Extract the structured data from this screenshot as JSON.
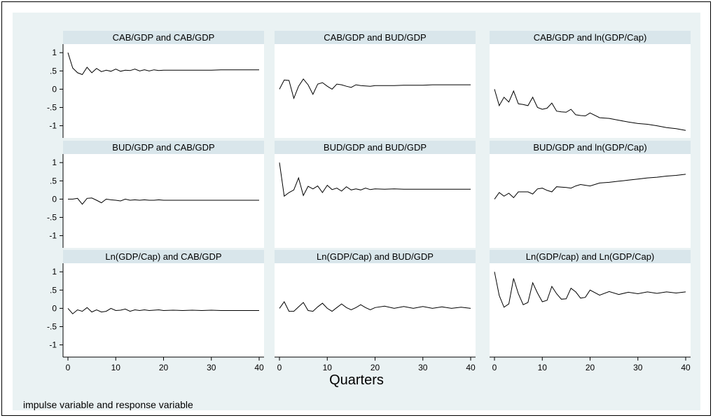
{
  "figure": {
    "xaxis_title": "Quarters",
    "note": "impulse variable and response variable"
  },
  "axes": {
    "x_ticks": [
      0,
      10,
      20,
      30,
      40
    ],
    "y_ticks": [
      1,
      0.5,
      0,
      -0.5,
      -1
    ],
    "y_tick_labels": [
      "1",
      ".5",
      "0",
      "-.5",
      "-1"
    ],
    "xlim": [
      0,
      40
    ],
    "ylim": [
      -1.2,
      1.1
    ]
  },
  "chart_data": [
    {
      "type": "line",
      "title": "CAB/GDP and CAB/GDP",
      "x": [
        0,
        1,
        2,
        3,
        4,
        5,
        6,
        7,
        8,
        9,
        10,
        11,
        12,
        13,
        14,
        15,
        16,
        17,
        18,
        19,
        20,
        22,
        24,
        26,
        28,
        30,
        32,
        34,
        36,
        38,
        40
      ],
      "y": [
        1.0,
        0.58,
        0.45,
        0.4,
        0.6,
        0.45,
        0.57,
        0.48,
        0.52,
        0.49,
        0.55,
        0.49,
        0.52,
        0.51,
        0.55,
        0.5,
        0.53,
        0.5,
        0.53,
        0.51,
        0.52,
        0.52,
        0.52,
        0.52,
        0.52,
        0.52,
        0.53,
        0.53,
        0.53,
        0.53,
        0.53
      ]
    },
    {
      "type": "line",
      "title": "CAB/GDP and BUD/GDP",
      "x": [
        0,
        1,
        2,
        3,
        4,
        5,
        6,
        7,
        8,
        9,
        10,
        11,
        12,
        13,
        14,
        15,
        16,
        17,
        18,
        19,
        20,
        22,
        24,
        26,
        28,
        30,
        32,
        34,
        36,
        38,
        40
      ],
      "y": [
        0.0,
        0.25,
        0.24,
        -0.25,
        0.08,
        0.28,
        0.12,
        -0.14,
        0.14,
        0.18,
        0.08,
        0.0,
        0.14,
        0.12,
        0.08,
        0.05,
        0.12,
        0.1,
        0.09,
        0.08,
        0.1,
        0.1,
        0.1,
        0.11,
        0.11,
        0.11,
        0.12,
        0.12,
        0.12,
        0.12,
        0.12
      ]
    },
    {
      "type": "line",
      "title": "CAB/GDP and ln(GDP/Cap)",
      "x": [
        0,
        1,
        2,
        3,
        4,
        5,
        6,
        7,
        8,
        9,
        10,
        11,
        12,
        13,
        14,
        15,
        16,
        17,
        18,
        19,
        20,
        22,
        24,
        26,
        28,
        30,
        32,
        34,
        36,
        38,
        40
      ],
      "y": [
        0.0,
        -0.45,
        -0.22,
        -0.35,
        -0.05,
        -0.4,
        -0.42,
        -0.45,
        -0.22,
        -0.5,
        -0.55,
        -0.52,
        -0.38,
        -0.6,
        -0.62,
        -0.63,
        -0.55,
        -0.7,
        -0.72,
        -0.73,
        -0.65,
        -0.78,
        -0.8,
        -0.85,
        -0.9,
        -0.94,
        -0.96,
        -1.0,
        -1.05,
        -1.08,
        -1.13
      ]
    },
    {
      "type": "line",
      "title": "BUD/GDP and CAB/GDP",
      "x": [
        0,
        1,
        2,
        3,
        4,
        5,
        6,
        7,
        8,
        9,
        10,
        11,
        12,
        13,
        14,
        15,
        16,
        17,
        18,
        19,
        20,
        22,
        24,
        26,
        28,
        30,
        32,
        34,
        36,
        38,
        40
      ],
      "y": [
        0.0,
        0.0,
        0.02,
        -0.14,
        0.02,
        0.03,
        -0.03,
        -0.1,
        0.0,
        -0.02,
        -0.03,
        -0.05,
        0.0,
        -0.03,
        -0.02,
        -0.03,
        -0.02,
        -0.03,
        -0.03,
        -0.02,
        -0.03,
        -0.03,
        -0.03,
        -0.03,
        -0.03,
        -0.03,
        -0.03,
        -0.03,
        -0.03,
        -0.03,
        -0.03
      ]
    },
    {
      "type": "line",
      "title": "BUD/GDP and BUD/GDP",
      "x": [
        0,
        1,
        2,
        3,
        4,
        5,
        6,
        7,
        8,
        9,
        10,
        11,
        12,
        13,
        14,
        15,
        16,
        17,
        18,
        19,
        20,
        22,
        24,
        26,
        28,
        30,
        32,
        34,
        36,
        38,
        40
      ],
      "y": [
        1.0,
        0.08,
        0.18,
        0.25,
        0.58,
        0.1,
        0.35,
        0.28,
        0.36,
        0.18,
        0.38,
        0.26,
        0.3,
        0.22,
        0.34,
        0.25,
        0.28,
        0.25,
        0.3,
        0.26,
        0.28,
        0.27,
        0.28,
        0.27,
        0.27,
        0.27,
        0.27,
        0.27,
        0.27,
        0.27,
        0.27
      ]
    },
    {
      "type": "line",
      "title": "BUD/GDP and ln(GDP/Cap)",
      "x": [
        0,
        1,
        2,
        3,
        4,
        5,
        6,
        7,
        8,
        9,
        10,
        11,
        12,
        13,
        14,
        15,
        16,
        17,
        18,
        19,
        20,
        22,
        24,
        26,
        28,
        30,
        32,
        34,
        36,
        38,
        40
      ],
      "y": [
        0.0,
        0.18,
        0.08,
        0.16,
        0.04,
        0.2,
        0.2,
        0.2,
        0.14,
        0.28,
        0.3,
        0.24,
        0.2,
        0.34,
        0.33,
        0.32,
        0.3,
        0.36,
        0.4,
        0.38,
        0.36,
        0.44,
        0.46,
        0.49,
        0.52,
        0.55,
        0.58,
        0.6,
        0.63,
        0.65,
        0.68
      ]
    },
    {
      "type": "line",
      "title": "Ln(GDP/Cap) and CAB/GDP",
      "x": [
        0,
        1,
        2,
        3,
        4,
        5,
        6,
        7,
        8,
        9,
        10,
        11,
        12,
        13,
        14,
        15,
        16,
        17,
        18,
        19,
        20,
        22,
        24,
        26,
        28,
        30,
        32,
        34,
        36,
        38,
        40
      ],
      "y": [
        0.0,
        -0.15,
        -0.04,
        -0.08,
        0.02,
        -0.1,
        -0.04,
        -0.1,
        -0.08,
        0.0,
        -0.06,
        -0.05,
        -0.02,
        -0.08,
        -0.04,
        -0.06,
        -0.04,
        -0.06,
        -0.05,
        -0.04,
        -0.06,
        -0.05,
        -0.06,
        -0.05,
        -0.06,
        -0.05,
        -0.06,
        -0.06,
        -0.06,
        -0.06,
        -0.06
      ]
    },
    {
      "type": "line",
      "title": "Ln(GDP/Cap) and BUD/GDP",
      "x": [
        0,
        1,
        2,
        3,
        4,
        5,
        6,
        7,
        8,
        9,
        10,
        11,
        12,
        13,
        14,
        15,
        16,
        17,
        18,
        19,
        20,
        22,
        24,
        26,
        28,
        30,
        32,
        34,
        36,
        38,
        40
      ],
      "y": [
        0.0,
        0.18,
        -0.08,
        -0.08,
        0.04,
        0.16,
        -0.06,
        -0.08,
        0.04,
        0.14,
        0.0,
        -0.08,
        0.02,
        0.12,
        0.02,
        -0.04,
        0.02,
        0.1,
        0.02,
        -0.04,
        0.02,
        0.06,
        0.0,
        0.05,
        0.0,
        0.05,
        0.0,
        0.04,
        0.0,
        0.03,
        0.0
      ]
    },
    {
      "type": "line",
      "title": "Ln(GDP/cap) and Ln(GDP/Cap)",
      "x": [
        0,
        1,
        2,
        3,
        4,
        5,
        6,
        7,
        8,
        9,
        10,
        11,
        12,
        13,
        14,
        15,
        16,
        17,
        18,
        19,
        20,
        22,
        24,
        26,
        28,
        30,
        32,
        34,
        36,
        38,
        40
      ],
      "y": [
        1.0,
        0.35,
        0.03,
        0.12,
        0.82,
        0.4,
        0.1,
        0.16,
        0.7,
        0.42,
        0.18,
        0.22,
        0.6,
        0.4,
        0.25,
        0.26,
        0.55,
        0.45,
        0.28,
        0.3,
        0.5,
        0.36,
        0.46,
        0.38,
        0.44,
        0.4,
        0.45,
        0.41,
        0.45,
        0.42,
        0.45
      ]
    }
  ]
}
